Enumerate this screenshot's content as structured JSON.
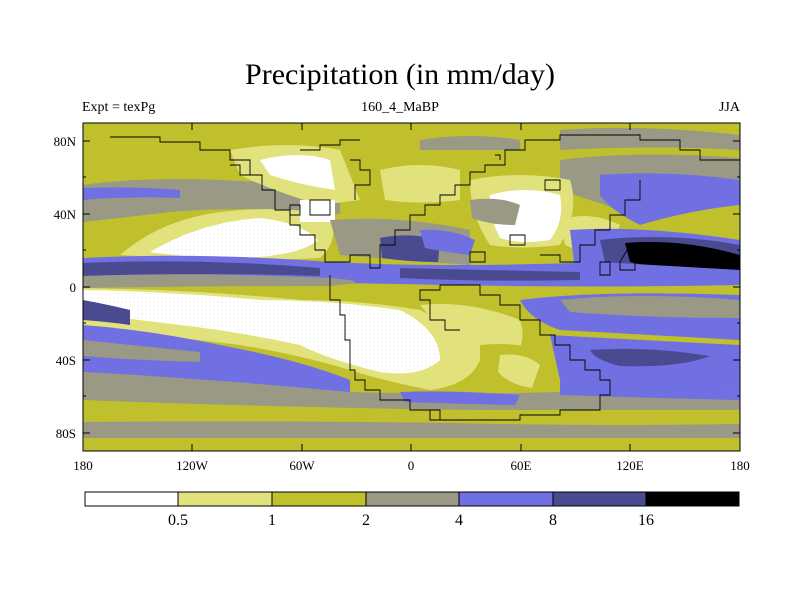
{
  "title": "Precipitation (in mm/day)",
  "subtitle_left": "Expt = texPg",
  "subtitle_center": "160_4_MaBP",
  "subtitle_right": "JJA",
  "map": {
    "lat_labels": [
      "80N",
      "40N",
      "0",
      "40S",
      "80S"
    ],
    "lon_labels": [
      "180",
      "120W",
      "60W",
      "0",
      "60E",
      "120E",
      "180"
    ]
  },
  "colorbar": {
    "levels": [
      "0.5",
      "1",
      "2",
      "4",
      "8",
      "16"
    ],
    "colors": [
      "#ffffff",
      "#e2e27d",
      "#c0c02d",
      "#999985",
      "#7070e2",
      "#4a4a90",
      "#000000"
    ]
  }
}
